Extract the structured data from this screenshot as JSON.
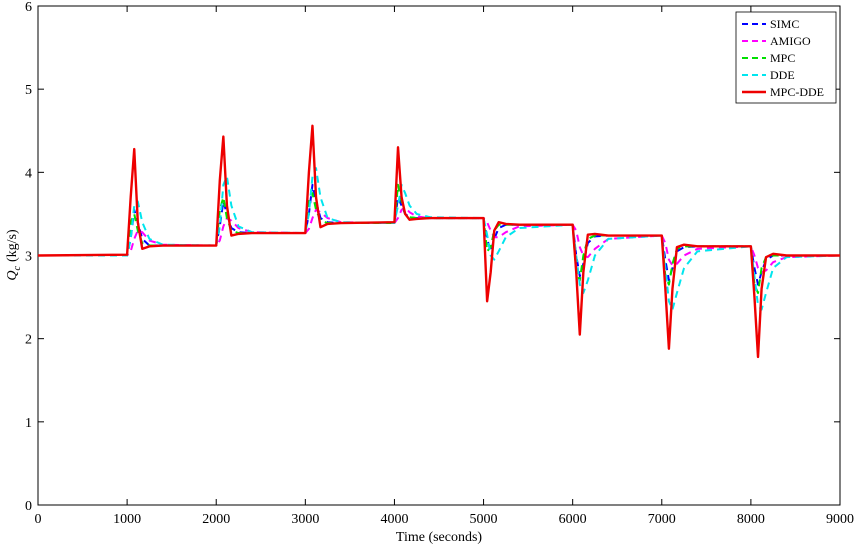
{
  "chart_data": {
    "type": "line",
    "xlabel": "Time (seconds)",
    "ylabel": {
      "main": "Q",
      "sub": "c",
      "unit": "(kg/s)"
    },
    "xlim": [
      0,
      9000
    ],
    "ylim": [
      0,
      6
    ],
    "xticks": [
      0,
      1000,
      2000,
      3000,
      4000,
      5000,
      6000,
      7000,
      8000,
      9000
    ],
    "yticks": [
      0,
      1,
      2,
      3,
      4,
      5,
      6
    ],
    "grid": false,
    "legend": "upper right",
    "x": [
      0,
      1000,
      1040,
      1080,
      1120,
      1170,
      1250,
      1400,
      2000,
      2040,
      2080,
      2120,
      2170,
      2250,
      2400,
      3000,
      3040,
      3080,
      3120,
      3170,
      3250,
      3400,
      4000,
      4040,
      4080,
      4120,
      4170,
      4250,
      4400,
      5000,
      5040,
      5080,
      5120,
      5170,
      5250,
      5400,
      6000,
      6040,
      6080,
      6120,
      6170,
      6250,
      6400,
      7000,
      7040,
      7080,
      7120,
      7170,
      7250,
      7400,
      8000,
      8040,
      8080,
      8120,
      8170,
      8250,
      8400,
      9000
    ],
    "series": [
      {
        "name": "SIMC",
        "color": "#0000ff",
        "style": "dashed",
        "values": [
          3.0,
          3.0,
          3.2,
          3.55,
          3.4,
          3.2,
          3.12,
          3.12,
          3.12,
          3.35,
          3.65,
          3.5,
          3.33,
          3.28,
          3.27,
          3.27,
          3.5,
          3.85,
          3.65,
          3.45,
          3.4,
          3.39,
          3.39,
          3.7,
          3.6,
          3.5,
          3.46,
          3.45,
          3.45,
          3.45,
          3.2,
          3.05,
          3.2,
          3.33,
          3.37,
          3.37,
          3.37,
          3.0,
          2.75,
          2.9,
          3.15,
          3.23,
          3.24,
          3.24,
          2.95,
          2.7,
          2.85,
          3.05,
          3.1,
          3.11,
          3.11,
          2.85,
          2.65,
          2.8,
          2.95,
          3.0,
          3.0,
          3.0
        ]
      },
      {
        "name": "AMIGO",
        "color": "#ff00ff",
        "style": "dashed",
        "values": [
          3.0,
          3.0,
          3.05,
          3.2,
          3.3,
          3.28,
          3.18,
          3.13,
          3.12,
          3.18,
          3.35,
          3.45,
          3.42,
          3.33,
          3.28,
          3.27,
          3.32,
          3.45,
          3.55,
          3.52,
          3.45,
          3.4,
          3.39,
          3.45,
          3.55,
          3.58,
          3.52,
          3.47,
          3.45,
          3.45,
          3.4,
          3.3,
          3.22,
          3.22,
          3.28,
          3.35,
          3.37,
          3.3,
          3.1,
          3.0,
          2.98,
          3.08,
          3.2,
          3.24,
          3.15,
          2.95,
          2.88,
          2.9,
          3.0,
          3.08,
          3.11,
          3.0,
          2.85,
          2.8,
          2.82,
          2.92,
          2.98,
          3.0
        ]
      },
      {
        "name": "MPC",
        "color": "#00e000",
        "style": "dashed",
        "values": [
          3.0,
          3.0,
          3.4,
          3.5,
          3.3,
          3.15,
          3.12,
          3.12,
          3.12,
          3.55,
          3.7,
          3.45,
          3.3,
          3.27,
          3.27,
          3.27,
          3.65,
          3.75,
          3.55,
          3.42,
          3.39,
          3.39,
          3.39,
          3.85,
          3.65,
          3.5,
          3.46,
          3.45,
          3.45,
          3.45,
          3.05,
          3.1,
          3.3,
          3.37,
          3.37,
          3.37,
          3.37,
          2.8,
          2.7,
          3.0,
          3.2,
          3.24,
          3.24,
          3.24,
          2.75,
          2.65,
          2.9,
          3.08,
          3.11,
          3.11,
          3.11,
          2.65,
          2.55,
          2.85,
          2.98,
          3.0,
          3.0,
          3.0
        ]
      },
      {
        "name": "DDE",
        "color": "#00e5ee",
        "style": "dashed",
        "values": [
          3.0,
          3.0,
          3.2,
          3.6,
          3.65,
          3.4,
          3.2,
          3.13,
          3.12,
          3.35,
          3.85,
          3.95,
          3.6,
          3.35,
          3.28,
          3.27,
          3.5,
          3.95,
          4.05,
          3.7,
          3.45,
          3.4,
          3.39,
          3.6,
          3.85,
          3.75,
          3.6,
          3.5,
          3.46,
          3.45,
          3.25,
          3.0,
          2.95,
          3.05,
          3.22,
          3.33,
          3.37,
          3.0,
          2.65,
          2.55,
          2.7,
          3.0,
          3.2,
          3.24,
          2.85,
          2.45,
          2.35,
          2.55,
          2.85,
          3.05,
          3.11,
          2.75,
          2.4,
          2.35,
          2.55,
          2.85,
          2.98,
          3.0
        ]
      },
      {
        "name": "MPC-DDE",
        "color": "#ee0000",
        "style": "solid",
        "values": [
          3.0,
          3.01,
          3.7,
          4.28,
          3.4,
          3.08,
          3.11,
          3.12,
          3.12,
          3.9,
          4.43,
          3.6,
          3.24,
          3.26,
          3.27,
          3.27,
          4.0,
          4.56,
          3.7,
          3.34,
          3.38,
          3.39,
          3.4,
          4.3,
          3.7,
          3.5,
          3.43,
          3.44,
          3.45,
          3.45,
          2.45,
          2.8,
          3.3,
          3.4,
          3.38,
          3.37,
          3.37,
          2.8,
          2.05,
          2.8,
          3.25,
          3.26,
          3.24,
          3.24,
          2.6,
          1.88,
          2.6,
          3.1,
          3.13,
          3.11,
          3.11,
          2.5,
          1.78,
          2.6,
          2.98,
          3.02,
          3.0,
          3.0
        ]
      }
    ]
  }
}
